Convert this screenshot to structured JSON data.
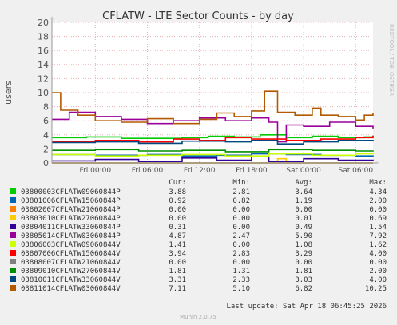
{
  "chart_data": {
    "type": "line",
    "title": "CFLATW - LTE Sector Counts - by day",
    "ylabel": "users",
    "xlabel": "",
    "ylim": [
      0,
      20
    ],
    "y_ticks": [
      0,
      2,
      4,
      6,
      8,
      10,
      12,
      14,
      16,
      18,
      20
    ],
    "x_tick_labels": [
      "Fri 00:00",
      "Fri 06:00",
      "Fri 12:00",
      "Fri 18:00",
      "Sat 00:00",
      "Sat 06:00"
    ],
    "x_range_hours": [
      -5,
      32
    ],
    "x_tick_hours": [
      0,
      6,
      12,
      18,
      24,
      30
    ],
    "grid": true,
    "side_label": "RRDTOOL / TOBI OETIKER",
    "legend_headers": {
      "cur": "Cur:",
      "min": "Min:",
      "avg": "Avg:",
      "max": "Max:"
    },
    "series": [
      {
        "name": "03800003CFLATW09060844P",
        "color": "#00cc00",
        "cur": "3.88",
        "min": "2.81",
        "avg": "3.64",
        "max": "4.34",
        "points": [
          [
            -5,
            3.6
          ],
          [
            -1,
            3.7
          ],
          [
            3,
            3.5
          ],
          [
            7,
            3.5
          ],
          [
            10,
            3.6
          ],
          [
            13,
            3.8
          ],
          [
            16,
            3.7
          ],
          [
            19,
            4.0
          ],
          [
            22,
            3.6
          ],
          [
            25,
            3.8
          ],
          [
            28,
            3.6
          ],
          [
            31,
            3.7
          ],
          [
            32,
            3.9
          ]
        ]
      },
      {
        "name": "03801006CFLATW15060844P",
        "color": "#0066b3",
        "cur": "0.92",
        "min": "0.82",
        "avg": "1.19",
        "avg_is": "",
        "max": "2.00",
        "points": [
          [
            -5,
            1.2
          ],
          [
            0,
            1.1
          ],
          [
            6,
            1.2
          ],
          [
            10,
            1.0
          ],
          [
            14,
            1.1
          ],
          [
            18,
            1.3
          ],
          [
            22,
            1.2
          ],
          [
            26,
            1.1
          ],
          [
            30,
            1.0
          ],
          [
            32,
            0.9
          ]
        ]
      },
      {
        "name": "03802007CFLATW21060844P",
        "color": "#ff8000",
        "cur": "0.00",
        "min": "0.00",
        "avg": "0.00",
        "max": "0.00",
        "points": [
          [
            -5,
            0.0
          ],
          [
            32,
            0.0
          ]
        ]
      },
      {
        "name": "03803010CFLATW27060844P",
        "color": "#ffcc00",
        "cur": "0.00",
        "min": "0.00",
        "avg": "0.01",
        "max": "0.69",
        "points": [
          [
            -5,
            0.0
          ],
          [
            20,
            0.0
          ],
          [
            21,
            0.6
          ],
          [
            22,
            0.0
          ],
          [
            32,
            0.0
          ]
        ]
      },
      {
        "name": "03804011CFLATW33060844P",
        "color": "#330099",
        "cur": "0.31",
        "min": "0.00",
        "avg": "0.49",
        "max": "1.54",
        "points": [
          [
            -5,
            0.3
          ],
          [
            0,
            0.5
          ],
          [
            5,
            0.2
          ],
          [
            10,
            0.7
          ],
          [
            14,
            0.4
          ],
          [
            18,
            0.9
          ],
          [
            20,
            0.2
          ],
          [
            24,
            0.6
          ],
          [
            28,
            0.4
          ],
          [
            32,
            0.3
          ]
        ]
      },
      {
        "name": "03805014CFLATW03060844P",
        "color": "#990099",
        "cur": "4.87",
        "min": "2.47",
        "avg": "5.90",
        "max": "7.92",
        "points": [
          [
            -5,
            6.2
          ],
          [
            -3,
            7.2
          ],
          [
            0,
            6.6
          ],
          [
            3,
            6.2
          ],
          [
            6,
            5.6
          ],
          [
            9,
            6.0
          ],
          [
            12,
            6.4
          ],
          [
            15,
            6.0
          ],
          [
            18,
            6.4
          ],
          [
            20,
            5.8
          ],
          [
            21,
            3.0
          ],
          [
            22,
            5.4
          ],
          [
            24,
            5.2
          ],
          [
            27,
            5.8
          ],
          [
            30,
            5.2
          ],
          [
            32,
            4.9
          ]
        ]
      },
      {
        "name": "03806003CFLATW09060844V",
        "color": "#ccff00",
        "cur": "1.41",
        "min": "0.00",
        "avg": "1.08",
        "max": "1.62",
        "points": [
          [
            -5,
            1.2
          ],
          [
            0,
            1.0
          ],
          [
            5,
            1.1
          ],
          [
            10,
            1.2
          ],
          [
            15,
            1.0
          ],
          [
            20,
            1.3
          ],
          [
            25,
            1.1
          ],
          [
            30,
            1.3
          ],
          [
            32,
            1.4
          ]
        ]
      },
      {
        "name": "03807006CFLATW15060844V",
        "color": "#ff0000",
        "cur": "3.94",
        "min": "2.83",
        "avg": "3.29",
        "max": "4.00",
        "points": [
          [
            -5,
            3.0
          ],
          [
            0,
            3.2
          ],
          [
            5,
            3.0
          ],
          [
            9,
            3.4
          ],
          [
            12,
            3.2
          ],
          [
            15,
            3.6
          ],
          [
            18,
            3.4
          ],
          [
            22,
            3.2
          ],
          [
            26,
            3.4
          ],
          [
            30,
            3.6
          ],
          [
            32,
            3.9
          ]
        ]
      },
      {
        "name": "03808007CFLATW21060844V",
        "color": "#808080",
        "cur": "0.00",
        "min": "0.00",
        "avg": "0.00",
        "max": "0.00",
        "points": [
          [
            -5,
            0.0
          ],
          [
            32,
            0.0
          ]
        ]
      },
      {
        "name": "03809010CFLATW27060844V",
        "color": "#008f00",
        "cur": "1.81",
        "min": "1.31",
        "avg": "1.81",
        "max": "2.00",
        "points": [
          [
            -5,
            1.8
          ],
          [
            0,
            1.9
          ],
          [
            5,
            1.7
          ],
          [
            10,
            1.8
          ],
          [
            15,
            1.6
          ],
          [
            20,
            1.9
          ],
          [
            25,
            1.8
          ],
          [
            30,
            1.7
          ],
          [
            32,
            1.8
          ]
        ]
      },
      {
        "name": "03810011CFLATW33060844V",
        "color": "#00487d",
        "cur": "3.31",
        "min": "2.33",
        "avg": "3.03",
        "max": "4.00",
        "points": [
          [
            -5,
            2.9
          ],
          [
            0,
            3.0
          ],
          [
            5,
            2.8
          ],
          [
            10,
            3.1
          ],
          [
            15,
            3.0
          ],
          [
            18,
            3.2
          ],
          [
            21,
            2.7
          ],
          [
            24,
            3.0
          ],
          [
            28,
            3.2
          ],
          [
            32,
            3.3
          ]
        ]
      },
      {
        "name": "03811014CFLATW03060844V",
        "color": "#b35a00",
        "cur": "7.11",
        "min": "5.10",
        "avg": "6.82",
        "max": "10.25",
        "points": [
          [
            -5,
            10.0
          ],
          [
            -4,
            7.5
          ],
          [
            -2,
            6.8
          ],
          [
            0,
            6.0
          ],
          [
            3,
            5.8
          ],
          [
            6,
            6.3
          ],
          [
            9,
            5.6
          ],
          [
            12,
            6.2
          ],
          [
            14,
            7.1
          ],
          [
            16,
            6.6
          ],
          [
            18,
            7.4
          ],
          [
            19.5,
            10.2
          ],
          [
            21,
            7.2
          ],
          [
            23,
            6.8
          ],
          [
            25,
            7.8
          ],
          [
            26,
            6.8
          ],
          [
            28,
            6.6
          ],
          [
            30,
            6.1
          ],
          [
            31,
            6.8
          ],
          [
            32,
            7.1
          ]
        ]
      }
    ]
  },
  "footer": {
    "last_update": "Last update: Sat Apr 18 06:45:25 2026",
    "munin_version": "Munin 2.0.75"
  }
}
